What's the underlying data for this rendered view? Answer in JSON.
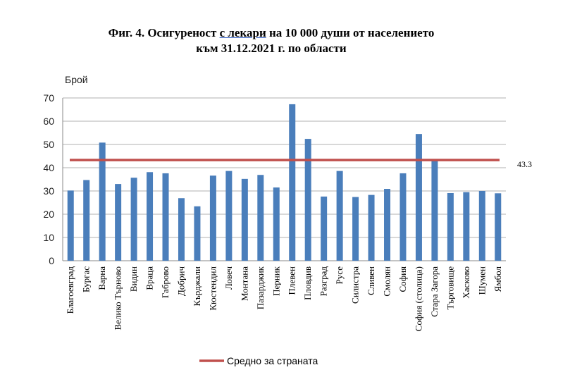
{
  "chart_data": {
    "type": "bar",
    "title_line1_pre": "Фиг. 4. Осигуреност ",
    "title_line1_link": "с лекари",
    "title_line1_post": " на 10 000 души от населението",
    "title_line2": "към 31.12.2021 г. по области",
    "ylabel": "Брой",
    "ylim": [
      0,
      70
    ],
    "yticks": [
      0,
      10,
      20,
      30,
      40,
      50,
      60,
      70
    ],
    "grid": true,
    "categories": [
      "Благоевград",
      "Бургас",
      "Варна",
      "Велико Търново",
      "Видин",
      "Враца",
      "Габрово",
      "Добрич",
      "Кърджали",
      "Кюстендил",
      "Ловеч",
      "Монтана",
      "Пазарджик",
      "Перник",
      "Плевен",
      "Пловдив",
      "Разград",
      "Русе",
      "Силистра",
      "Сливен",
      "Смолян",
      "София",
      "София (столица)",
      "Стара Загора",
      "Търговище",
      "Хасково",
      "Шумен",
      "Ямбол"
    ],
    "values": [
      30.2,
      34.7,
      50.8,
      33.0,
      35.7,
      38.1,
      37.6,
      26.9,
      23.4,
      36.6,
      38.6,
      35.2,
      36.9,
      31.5,
      67.3,
      52.4,
      27.6,
      38.6,
      27.4,
      28.3,
      30.9,
      37.6,
      54.5,
      43.5,
      29.1,
      29.5,
      30.0,
      29.0
    ],
    "bar_color": "#4a7ebb",
    "average": {
      "value": 43.3,
      "label": "43.3",
      "color": "#c0504d",
      "name": "Средно за страната"
    },
    "legend_position": "bottom"
  }
}
